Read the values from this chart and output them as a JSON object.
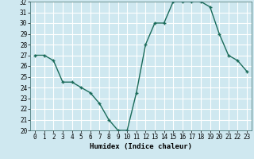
{
  "x": [
    0,
    1,
    2,
    3,
    4,
    5,
    6,
    7,
    8,
    9,
    10,
    11,
    12,
    13,
    14,
    15,
    16,
    17,
    18,
    19,
    20,
    21,
    22,
    23
  ],
  "y": [
    27,
    27,
    26.5,
    24.5,
    24.5,
    24,
    23.5,
    22.5,
    21,
    20,
    20,
    23.5,
    28,
    30,
    30,
    32,
    32,
    32,
    32,
    31.5,
    29,
    27,
    26.5,
    25.5
  ],
  "xlabel": "Humidex (Indice chaleur)",
  "ylim": [
    20,
    32
  ],
  "xlim": [
    -0.5,
    23.5
  ],
  "yticks": [
    20,
    21,
    22,
    23,
    24,
    25,
    26,
    27,
    28,
    29,
    30,
    31,
    32
  ],
  "xticks": [
    0,
    1,
    2,
    3,
    4,
    5,
    6,
    7,
    8,
    9,
    10,
    11,
    12,
    13,
    14,
    15,
    16,
    17,
    18,
    19,
    20,
    21,
    22,
    23
  ],
  "line_color": "#1a6b5a",
  "marker": "+",
  "bg_color": "#cfe8f0",
  "grid_color": "#ffffff",
  "label_fontsize": 6.5,
  "tick_fontsize": 5.5,
  "line_width": 1.0,
  "marker_size": 3.5,
  "marker_edge_width": 1.0
}
